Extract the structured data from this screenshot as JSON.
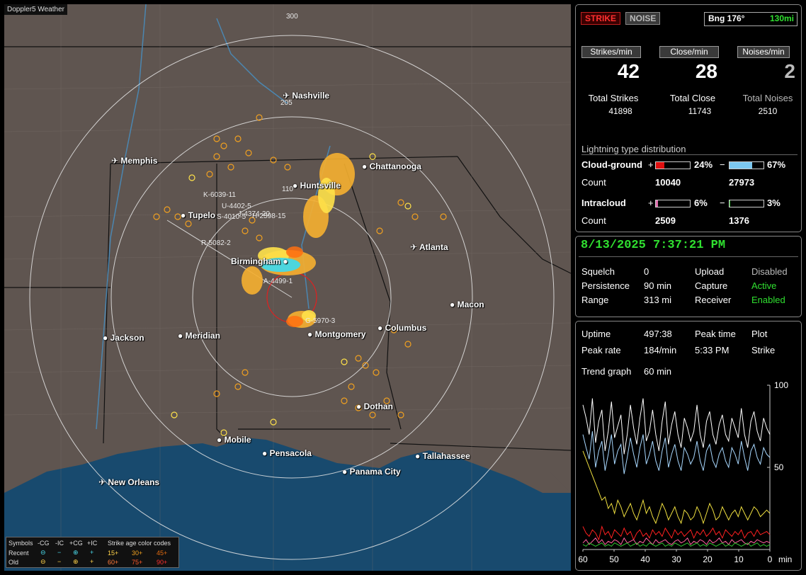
{
  "app": {
    "title": "Doppler5 Weather"
  },
  "map": {
    "range_labels": [
      "300",
      "205",
      "110"
    ],
    "cities": [
      {
        "name": "Nashville",
        "type": "airport"
      },
      {
        "name": "Memphis",
        "type": "airport"
      },
      {
        "name": "Chattanooga",
        "type": "dot"
      },
      {
        "name": "Huntsville",
        "type": "dot"
      },
      {
        "name": "Tupelo",
        "type": "dot"
      },
      {
        "name": "Atlanta",
        "type": "airport"
      },
      {
        "name": "Birmingham",
        "type": "dot"
      },
      {
        "name": "Macon",
        "type": "dot"
      },
      {
        "name": "Jackson",
        "type": "dot"
      },
      {
        "name": "Meridian",
        "type": "dot"
      },
      {
        "name": "Montgomery",
        "type": "dot"
      },
      {
        "name": "Columbus",
        "type": "dot"
      },
      {
        "name": "Dothan",
        "type": "dot"
      },
      {
        "name": "Mobile",
        "type": "dot"
      },
      {
        "name": "Pensacola",
        "type": "dot"
      },
      {
        "name": "Tallahassee",
        "type": "dot"
      },
      {
        "name": "Panama City",
        "type": "dot"
      },
      {
        "name": "New Orleans",
        "type": "airport"
      }
    ],
    "storm_labels": [
      "K-6039-11",
      "U-4402-5",
      "J-4374-20",
      "S-4010-5",
      "H-2598-15",
      "R-5082-2",
      "A-4499-1",
      "G-5970-3"
    ]
  },
  "legend": {
    "symbols_label": "Symbols",
    "cols": [
      "-CG",
      "-IC",
      "+CG",
      "+IC"
    ],
    "recent": "Recent",
    "old": "Old",
    "age_title": "Strike age color codes",
    "recent_ages": [
      "15+",
      "30+",
      "45+"
    ],
    "old_ages": [
      "60+",
      "75+",
      "90+"
    ],
    "age_colors": [
      "#ffd24a",
      "#f0a020",
      "#e06a10",
      "#ff7a3a",
      "#ff5a2a",
      "#ff3030"
    ]
  },
  "header": {
    "strike_label": "STRIKE",
    "noise_label": "NOISE",
    "bearing": "Bng 176°",
    "distance": "130mi"
  },
  "counts": {
    "strikes_min_label": "Strikes/min",
    "close_min_label": "Close/min",
    "noises_min_label": "Noises/min",
    "strikes_min": "42",
    "close_min": "28",
    "noises_min": "2",
    "total_strikes_label": "Total Strikes",
    "total_close_label": "Total Close",
    "total_noises_label": "Total Noises",
    "total_strikes": "41898",
    "total_close": "11743",
    "total_noises": "2510"
  },
  "distribution": {
    "title": "Lightning type distribution",
    "cg_label": "Cloud-ground",
    "ic_label": "Intracloud",
    "count_label": "Count",
    "plus": "+",
    "minus": "−",
    "cg_pos_pct": "24%",
    "cg_neg_pct": "67%",
    "ic_pos_pct": "6%",
    "ic_neg_pct": "3%",
    "cg_pos_fill": 0.24,
    "cg_neg_fill": 0.67,
    "ic_pos_fill": 0.06,
    "ic_neg_fill": 0.03,
    "cg_pos_count": "10040",
    "cg_neg_count": "27973",
    "ic_pos_count": "2509",
    "ic_neg_count": "1376",
    "colors": {
      "cg_pos": "#e01010",
      "cg_neg": "#7cc8f0",
      "ic_pos": "#e070b0",
      "ic_neg": "#30c030"
    }
  },
  "status": {
    "datetime": "8/13/2025 7:37:21 PM",
    "squelch_label": "Squelch",
    "squelch": "0",
    "persistence_label": "Persistence",
    "persistence": "90 min",
    "range_label": "Range",
    "range": "313 mi",
    "upload_label": "Upload",
    "upload": "Disabled",
    "capture_label": "Capture",
    "capture": "Active",
    "receiver_label": "Receiver",
    "receiver": "Enabled"
  },
  "stats": {
    "uptime_label": "Uptime",
    "uptime": "497:38",
    "peak_time_label": "Peak time",
    "peak_time": "5:33 PM",
    "plot_label": "Plot",
    "plot": "Strike",
    "peak_rate_label": "Peak rate",
    "peak_rate": "184/min",
    "trend_label": "Trend graph",
    "trend": "60 min"
  },
  "chart_data": {
    "type": "line",
    "x_ticks": [
      "60",
      "50",
      "40",
      "30",
      "20",
      "10",
      "0"
    ],
    "x_unit": "min",
    "y_ticks": [
      "100",
      "50"
    ],
    "ylim": [
      0,
      100
    ],
    "xlim": [
      60,
      0
    ],
    "series": [
      {
        "color": "#ffffff",
        "values": [
          88,
          80,
          70,
          92,
          65,
          78,
          85,
          60,
          72,
          90,
          68,
          75,
          82,
          58,
          70,
          88,
          74,
          64,
          80,
          92,
          66,
          72,
          85,
          70,
          60,
          78,
          90,
          64,
          76,
          84,
          70,
          62,
          80,
          74,
          66,
          72,
          88,
          70,
          62,
          78,
          84,
          70,
          64,
          76,
          82,
          70,
          66,
          80,
          74,
          68,
          86,
          70,
          62,
          78,
          84,
          72,
          66,
          80,
          74,
          70
        ]
      },
      {
        "color": "#a8d8ff",
        "values": [
          70,
          62,
          55,
          72,
          50,
          60,
          66,
          48,
          58,
          70,
          52,
          60,
          64,
          46,
          56,
          68,
          58,
          50,
          62,
          70,
          52,
          58,
          66,
          54,
          48,
          60,
          68,
          50,
          58,
          64,
          54,
          48,
          62,
          58,
          52,
          56,
          66,
          54,
          48,
          60,
          64,
          54,
          50,
          58,
          62,
          54,
          50,
          62,
          58,
          52,
          66,
          56,
          48,
          60,
          64,
          56,
          52,
          62,
          58,
          56
        ]
      },
      {
        "color": "#f0e040",
        "values": [
          60,
          55,
          50,
          45,
          40,
          35,
          30,
          32,
          25,
          28,
          22,
          30,
          26,
          20,
          24,
          28,
          22,
          18,
          24,
          30,
          22,
          26,
          20,
          16,
          22,
          28,
          24,
          18,
          22,
          26,
          20,
          16,
          24,
          22,
          18,
          20,
          26,
          22,
          16,
          22,
          28,
          24,
          18,
          20,
          26,
          22,
          18,
          22,
          24,
          20,
          26,
          22,
          18,
          22,
          26,
          24,
          20,
          22,
          24,
          22
        ]
      },
      {
        "color": "#ff2020",
        "values": [
          14,
          10,
          8,
          12,
          10,
          6,
          14,
          9,
          11,
          7,
          12,
          10,
          8,
          13,
          9,
          11,
          6,
          10,
          12,
          8,
          10,
          7,
          12,
          9,
          11,
          8,
          13,
          10,
          7,
          12,
          9,
          11,
          8,
          10,
          12,
          7,
          11,
          9,
          12,
          8,
          10,
          13,
          9,
          11,
          7,
          12,
          10,
          8,
          11,
          9,
          12,
          7,
          10,
          11,
          8,
          12,
          9,
          10,
          11,
          9
        ]
      },
      {
        "color": "#ff60a0",
        "values": [
          4,
          6,
          3,
          5,
          7,
          4,
          6,
          3,
          5,
          4,
          6,
          5,
          3,
          7,
          4,
          5,
          6,
          3,
          5,
          4,
          7,
          5,
          3,
          6,
          4,
          5,
          6,
          4,
          3,
          5,
          6,
          4,
          5,
          7,
          3,
          5,
          4,
          6,
          5,
          3,
          6,
          4,
          5,
          7,
          4,
          5,
          3,
          6,
          4,
          5,
          6,
          4,
          3,
          5,
          4,
          6,
          5,
          4,
          5,
          4
        ]
      },
      {
        "color": "#30c030",
        "values": [
          3,
          2,
          4,
          3,
          2,
          3,
          4,
          2,
          3,
          2,
          4,
          3,
          2,
          3,
          4,
          2,
          3,
          4,
          2,
          3,
          2,
          4,
          3,
          2,
          3,
          4,
          2,
          3,
          2,
          4,
          3,
          2,
          3,
          4,
          2,
          3,
          4,
          2,
          3,
          2,
          4,
          3,
          2,
          3,
          4,
          2,
          3,
          2,
          4,
          3,
          2,
          3,
          4,
          2,
          3,
          4,
          2,
          3,
          2,
          3
        ]
      }
    ]
  }
}
